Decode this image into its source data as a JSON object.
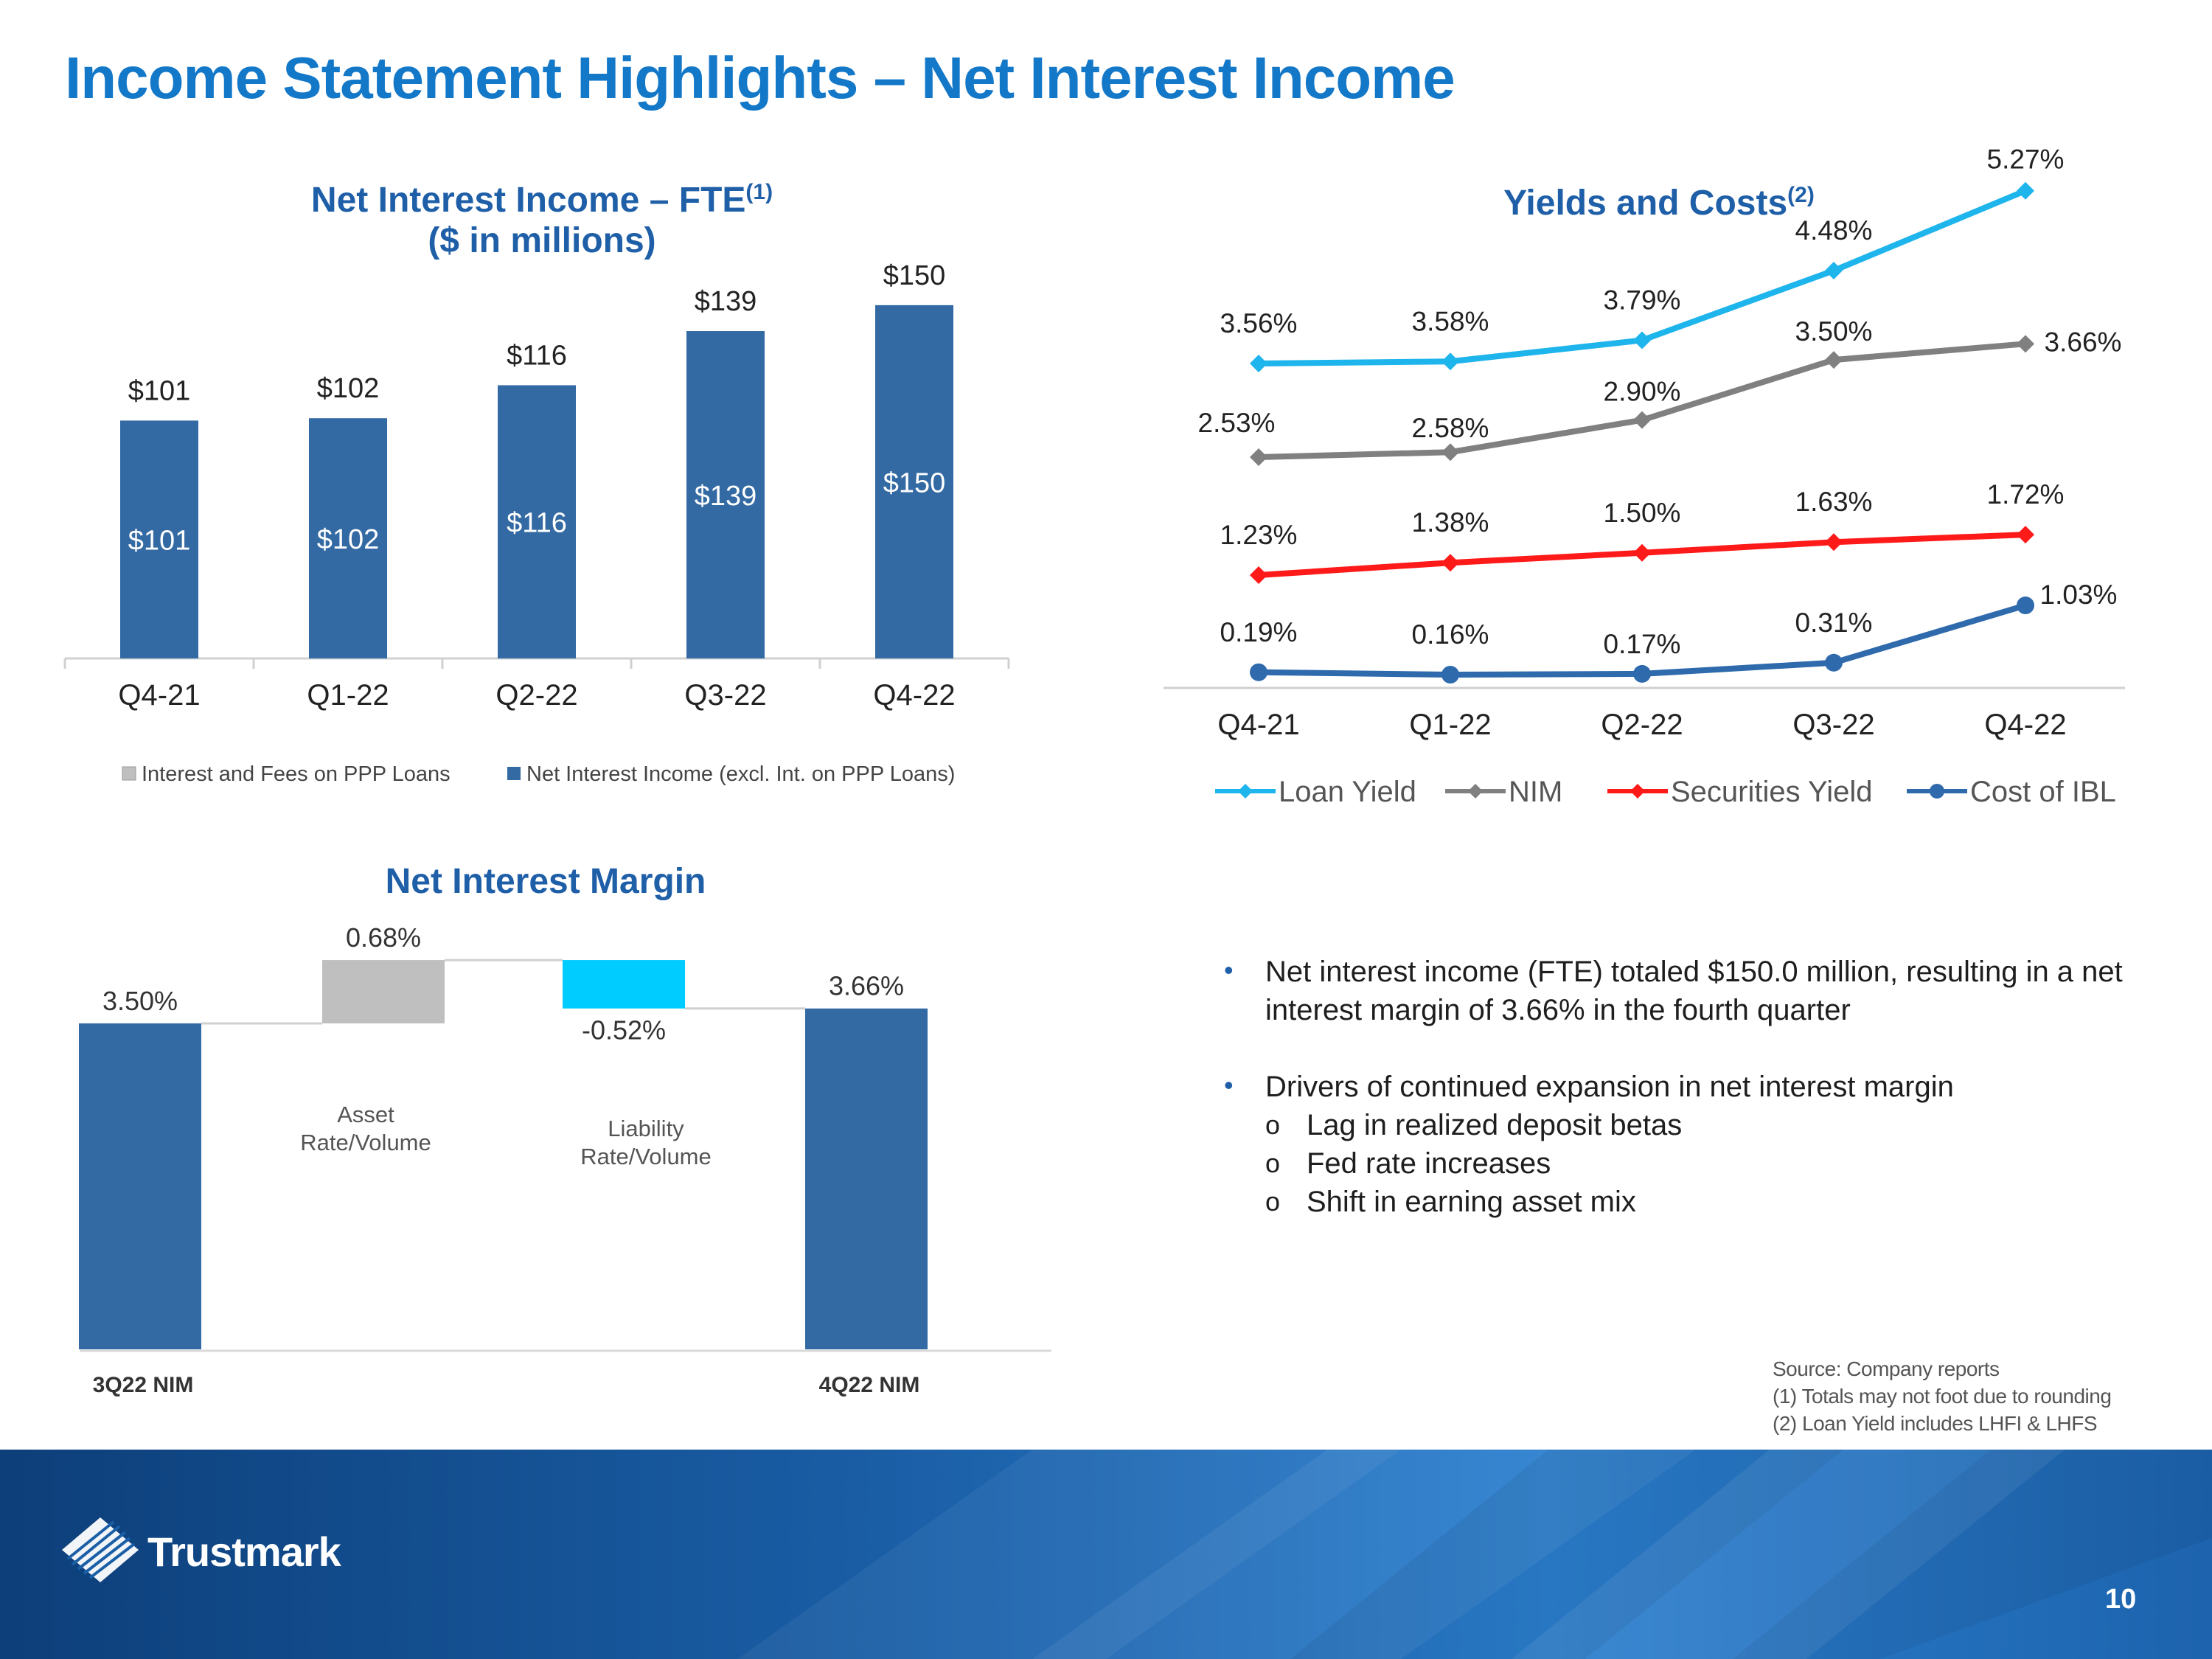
{
  "title": "Income Statement Highlights – Net Interest Income",
  "colors": {
    "title": "#1478c8",
    "bar": "#336aa3",
    "ppp": "#bfbfbf",
    "loan": "#1eb4ec",
    "nim": "#808080",
    "sec": "#ff1a1a",
    "ibl": "#2e6aac",
    "liab": "#00ccff"
  },
  "chart_data": [
    {
      "type": "bar",
      "title": "Net Interest Income – FTE",
      "title_sup": "(1)",
      "subtitle": "($ in millions)",
      "categories": [
        "Q4-21",
        "Q1-22",
        "Q2-22",
        "Q3-22",
        "Q4-22"
      ],
      "series": [
        {
          "name": "Interest and Fees on PPP Loans",
          "values": [
            0,
            0,
            0,
            0,
            0
          ]
        },
        {
          "name": "Net Interest Income (excl. Int. on PPP Loans)",
          "values": [
            101,
            102,
            116,
            139,
            150
          ]
        }
      ],
      "inner_labels": [
        "$101",
        "$102",
        "$116",
        "$139",
        "$150"
      ],
      "total_labels": [
        "$101",
        "$102",
        "$116",
        "$139",
        "$150"
      ],
      "legend": [
        "Interest and Fees on PPP Loans",
        "Net Interest Income (excl. Int. on PPP Loans)"
      ],
      "ylim": [
        0,
        170
      ]
    },
    {
      "type": "line",
      "title": "Yields and Costs",
      "title_sup": "(2)",
      "categories": [
        "Q4-21",
        "Q1-22",
        "Q2-22",
        "Q3-22",
        "Q4-22"
      ],
      "series": [
        {
          "name": "Loan Yield",
          "values": [
            3.56,
            3.58,
            3.79,
            4.48,
            5.27
          ],
          "labels": [
            "3.56%",
            "3.58%",
            "3.79%",
            "4.48%",
            "5.27%"
          ]
        },
        {
          "name": "NIM",
          "values": [
            2.53,
            2.58,
            2.9,
            3.5,
            3.66
          ],
          "labels": [
            "2.53%",
            "2.58%",
            "2.90%",
            "3.50%",
            "3.66%"
          ]
        },
        {
          "name": "Securities Yield",
          "values": [
            1.23,
            1.38,
            1.5,
            1.63,
            1.72
          ],
          "labels": [
            "1.23%",
            "1.38%",
            "1.50%",
            "1.63%",
            "1.72%"
          ]
        },
        {
          "name": "Cost of IBL",
          "values": [
            0.19,
            0.16,
            0.17,
            0.31,
            1.03
          ],
          "labels": [
            "0.19%",
            "0.16%",
            "0.17%",
            "0.31%",
            "1.03%"
          ]
        }
      ]
    },
    {
      "type": "bar",
      "subtype": "waterfall",
      "title": "Net Interest Margin",
      "steps": [
        {
          "name": "3Q22 NIM",
          "category": "3Q22 NIM",
          "value": 3.5,
          "label": "3.50%",
          "kind": "total"
        },
        {
          "name": "Asset Rate/Volume",
          "category_lines": [
            "Asset",
            "Rate/Volume"
          ],
          "value": 0.68,
          "label": "0.68%",
          "kind": "delta"
        },
        {
          "name": "Liability Rate/Volume",
          "category_lines": [
            "Liability",
            "Rate/Volume"
          ],
          "value": -0.52,
          "label": "-0.52%",
          "kind": "delta"
        },
        {
          "name": "4Q22 NIM",
          "category": "4Q22 NIM",
          "value": 3.66,
          "label": "3.66%",
          "kind": "total"
        }
      ],
      "ylim": [
        0,
        4.4
      ]
    }
  ],
  "bullets": [
    {
      "text": "Net interest income (FTE) totaled $150.0 million, resulting in a net interest margin of 3.66% in the fourth quarter",
      "subs": []
    },
    {
      "text": "Drivers of continued expansion in net interest margin",
      "subs": [
        "Lag in realized deposit betas",
        "Fed rate increases",
        "Shift in earning asset mix"
      ]
    }
  ],
  "source": [
    "Source: Company reports",
    "(1) Totals may not foot due to rounding",
    "(2) Loan Yield  includes LHFI & LHFS"
  ],
  "footer": {
    "logo": "Trustmark",
    "page": "10"
  }
}
